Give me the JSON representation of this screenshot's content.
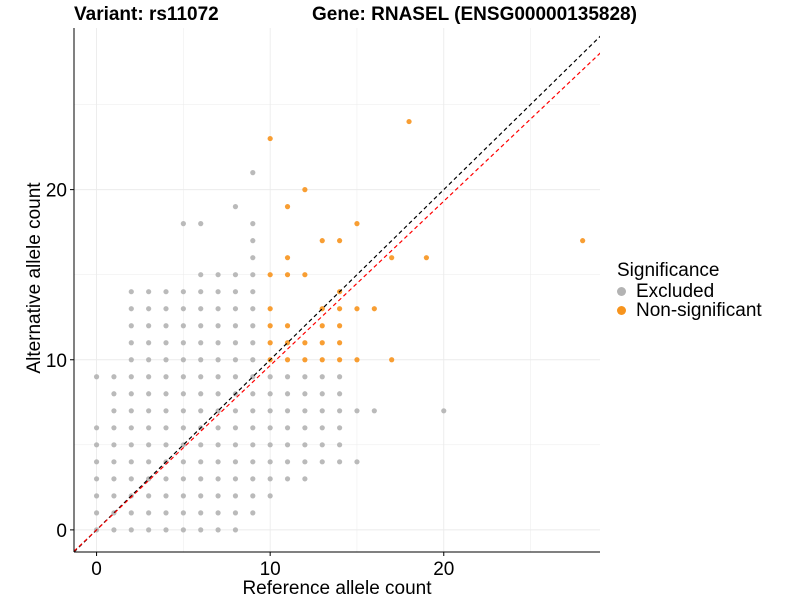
{
  "colors": {
    "excluded": "#b3b3b3",
    "nonsignificant": "#f7941d",
    "identity_line": "#000000",
    "fit_line": "#ff0000",
    "grid": "#ebebeb"
  },
  "chart_data": {
    "type": "scatter",
    "title_left": "Variant: rs11072",
    "title_right": "Gene: RNASEL (ENSG00000135828)",
    "xlabel": "Reference allele count",
    "ylabel": "Alternative allele count",
    "xlim": [
      -1.3,
      29
    ],
    "ylim": [
      -1.3,
      29.5
    ],
    "xticks": [
      0,
      10,
      20
    ],
    "yticks": [
      0,
      10,
      20
    ],
    "grid": true,
    "legend": {
      "title": "Significance",
      "position": "right",
      "entries": [
        "Excluded",
        "Non-significant"
      ]
    },
    "reference_lines": [
      {
        "style": "dashed",
        "color": "black",
        "slope": 1,
        "intercept": 0
      },
      {
        "style": "dashed",
        "color": "red",
        "slope": 0.966,
        "intercept": 0
      }
    ],
    "series": [
      {
        "name": "Excluded",
        "points": [
          [
            0,
            0
          ],
          [
            0,
            1
          ],
          [
            0,
            2
          ],
          [
            0,
            3
          ],
          [
            0,
            4
          ],
          [
            0,
            5
          ],
          [
            0,
            6
          ],
          [
            0,
            9
          ],
          [
            1,
            0
          ],
          [
            1,
            1
          ],
          [
            1,
            2
          ],
          [
            1,
            3
          ],
          [
            1,
            4
          ],
          [
            1,
            5
          ],
          [
            1,
            6
          ],
          [
            1,
            7
          ],
          [
            1,
            8
          ],
          [
            1,
            9
          ],
          [
            2,
            0
          ],
          [
            2,
            1
          ],
          [
            2,
            2
          ],
          [
            2,
            3
          ],
          [
            2,
            4
          ],
          [
            2,
            5
          ],
          [
            2,
            6
          ],
          [
            2,
            7
          ],
          [
            2,
            8
          ],
          [
            2,
            9
          ],
          [
            2,
            10
          ],
          [
            2,
            11
          ],
          [
            2,
            12
          ],
          [
            2,
            13
          ],
          [
            2,
            14
          ],
          [
            3,
            0
          ],
          [
            3,
            1
          ],
          [
            3,
            2
          ],
          [
            3,
            3
          ],
          [
            3,
            4
          ],
          [
            3,
            5
          ],
          [
            3,
            6
          ],
          [
            3,
            7
          ],
          [
            3,
            8
          ],
          [
            3,
            9
          ],
          [
            3,
            10
          ],
          [
            3,
            11
          ],
          [
            3,
            12
          ],
          [
            3,
            13
          ],
          [
            3,
            14
          ],
          [
            4,
            0
          ],
          [
            4,
            1
          ],
          [
            4,
            2
          ],
          [
            4,
            3
          ],
          [
            4,
            4
          ],
          [
            4,
            5
          ],
          [
            4,
            6
          ],
          [
            4,
            7
          ],
          [
            4,
            8
          ],
          [
            4,
            9
          ],
          [
            4,
            10
          ],
          [
            4,
            11
          ],
          [
            4,
            12
          ],
          [
            4,
            13
          ],
          [
            4,
            14
          ],
          [
            5,
            0
          ],
          [
            5,
            1
          ],
          [
            5,
            2
          ],
          [
            5,
            3
          ],
          [
            5,
            4
          ],
          [
            5,
            5
          ],
          [
            5,
            6
          ],
          [
            5,
            7
          ],
          [
            5,
            8
          ],
          [
            5,
            9
          ],
          [
            5,
            10
          ],
          [
            5,
            11
          ],
          [
            5,
            12
          ],
          [
            5,
            13
          ],
          [
            5,
            14
          ],
          [
            5,
            18
          ],
          [
            6,
            0
          ],
          [
            6,
            1
          ],
          [
            6,
            2
          ],
          [
            6,
            3
          ],
          [
            6,
            4
          ],
          [
            6,
            5
          ],
          [
            6,
            6
          ],
          [
            6,
            7
          ],
          [
            6,
            8
          ],
          [
            6,
            9
          ],
          [
            6,
            10
          ],
          [
            6,
            11
          ],
          [
            6,
            12
          ],
          [
            6,
            13
          ],
          [
            6,
            14
          ],
          [
            6,
            15
          ],
          [
            6,
            18
          ],
          [
            7,
            0
          ],
          [
            7,
            1
          ],
          [
            7,
            2
          ],
          [
            7,
            3
          ],
          [
            7,
            4
          ],
          [
            7,
            5
          ],
          [
            7,
            6
          ],
          [
            7,
            7
          ],
          [
            7,
            8
          ],
          [
            7,
            9
          ],
          [
            7,
            10
          ],
          [
            7,
            11
          ],
          [
            7,
            12
          ],
          [
            7,
            13
          ],
          [
            7,
            14
          ],
          [
            7,
            15
          ],
          [
            8,
            0
          ],
          [
            8,
            1
          ],
          [
            8,
            2
          ],
          [
            8,
            3
          ],
          [
            8,
            4
          ],
          [
            8,
            5
          ],
          [
            8,
            6
          ],
          [
            8,
            7
          ],
          [
            8,
            8
          ],
          [
            8,
            9
          ],
          [
            8,
            10
          ],
          [
            8,
            11
          ],
          [
            8,
            12
          ],
          [
            8,
            13
          ],
          [
            8,
            14
          ],
          [
            8,
            15
          ],
          [
            8,
            19
          ],
          [
            9,
            1
          ],
          [
            9,
            2
          ],
          [
            9,
            3
          ],
          [
            9,
            4
          ],
          [
            9,
            5
          ],
          [
            9,
            6
          ],
          [
            9,
            7
          ],
          [
            9,
            8
          ],
          [
            9,
            9
          ],
          [
            9,
            10
          ],
          [
            9,
            11
          ],
          [
            9,
            12
          ],
          [
            9,
            13
          ],
          [
            9,
            14
          ],
          [
            9,
            15
          ],
          [
            9,
            16
          ],
          [
            9,
            17
          ],
          [
            9,
            18
          ],
          [
            9,
            21
          ],
          [
            10,
            2
          ],
          [
            10,
            3
          ],
          [
            10,
            4
          ],
          [
            10,
            5
          ],
          [
            10,
            6
          ],
          [
            10,
            7
          ],
          [
            10,
            8
          ],
          [
            10,
            9
          ],
          [
            11,
            3
          ],
          [
            11,
            4
          ],
          [
            11,
            5
          ],
          [
            11,
            6
          ],
          [
            11,
            7
          ],
          [
            11,
            8
          ],
          [
            11,
            9
          ],
          [
            12,
            3
          ],
          [
            12,
            4
          ],
          [
            12,
            5
          ],
          [
            12,
            6
          ],
          [
            12,
            7
          ],
          [
            12,
            8
          ],
          [
            12,
            9
          ],
          [
            13,
            4
          ],
          [
            13,
            5
          ],
          [
            13,
            6
          ],
          [
            13,
            7
          ],
          [
            13,
            8
          ],
          [
            13,
            9
          ],
          [
            14,
            4
          ],
          [
            14,
            5
          ],
          [
            14,
            6
          ],
          [
            14,
            7
          ],
          [
            14,
            8
          ],
          [
            14,
            9
          ],
          [
            15,
            4
          ],
          [
            15,
            7
          ],
          [
            16,
            7
          ],
          [
            20,
            7
          ]
        ]
      },
      {
        "name": "Non-significant",
        "points": [
          [
            10,
            10
          ],
          [
            10,
            11
          ],
          [
            10,
            12
          ],
          [
            10,
            13
          ],
          [
            10,
            15
          ],
          [
            10,
            23
          ],
          [
            11,
            10
          ],
          [
            11,
            11
          ],
          [
            11,
            12
          ],
          [
            11,
            15
          ],
          [
            11,
            16
          ],
          [
            11,
            19
          ],
          [
            12,
            10
          ],
          [
            12,
            11
          ],
          [
            12,
            15
          ],
          [
            12,
            20
          ],
          [
            13,
            10
          ],
          [
            13,
            11
          ],
          [
            13,
            12
          ],
          [
            13,
            13
          ],
          [
            13,
            17
          ],
          [
            14,
            10
          ],
          [
            14,
            11
          ],
          [
            14,
            12
          ],
          [
            14,
            13
          ],
          [
            14,
            14
          ],
          [
            14,
            17
          ],
          [
            15,
            10
          ],
          [
            15,
            13
          ],
          [
            15,
            18
          ],
          [
            16,
            13
          ],
          [
            17,
            10
          ],
          [
            17,
            16
          ],
          [
            18,
            24
          ],
          [
            19,
            16
          ],
          [
            28,
            17
          ]
        ]
      }
    ]
  }
}
